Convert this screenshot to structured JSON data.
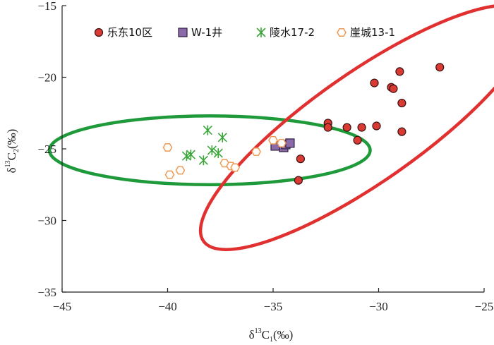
{
  "chart_data": {
    "type": "scatter",
    "xlabel_parts": {
      "base": "δ",
      "sup": "13",
      "main": "C",
      "sub": "1",
      "unit": "(‰)"
    },
    "ylabel_parts": {
      "base": "δ",
      "sup": "13",
      "main": "C",
      "sub": "2",
      "unit": "(‰)"
    },
    "xlim": [
      -45,
      -25
    ],
    "ylim": [
      -35,
      -15
    ],
    "xticks": [
      -45,
      -40,
      -35,
      -30,
      -25
    ],
    "yticks": [
      -35,
      -30,
      -25,
      -20,
      -15
    ],
    "xtick_labels": [
      "−45",
      "−40",
      "−35",
      "−30",
      "−25"
    ],
    "ytick_labels": [
      "−35",
      "−30",
      "−25",
      "−20",
      "−15"
    ],
    "grid": false,
    "legend_position": "top",
    "series": [
      {
        "name": "乐东10区",
        "marker": "filled-circle",
        "color": "#d93a34",
        "points": [
          [
            -27.1,
            -19.3
          ],
          [
            -29.0,
            -19.6
          ],
          [
            -29.4,
            -20.7
          ],
          [
            -29.3,
            -20.8
          ],
          [
            -30.2,
            -20.4
          ],
          [
            -28.9,
            -21.8
          ],
          [
            -32.4,
            -23.2
          ],
          [
            -32.4,
            -23.5
          ],
          [
            -31.5,
            -23.5
          ],
          [
            -30.8,
            -23.5
          ],
          [
            -30.1,
            -23.4
          ],
          [
            -28.9,
            -23.8
          ],
          [
            -31.0,
            -24.4
          ],
          [
            -33.7,
            -25.7
          ],
          [
            -33.8,
            -27.2
          ]
        ]
      },
      {
        "name": "W-1井",
        "marker": "filled-square",
        "color": "#8a6aa8",
        "points": [
          [
            -34.9,
            -24.8
          ],
          [
            -34.5,
            -24.9
          ],
          [
            -34.4,
            -24.7
          ],
          [
            -34.2,
            -24.6
          ]
        ]
      },
      {
        "name": "陵水17-2",
        "marker": "asterisk",
        "color": "#3aa63a",
        "points": [
          [
            -38.1,
            -23.7
          ],
          [
            -37.4,
            -24.2
          ],
          [
            -37.9,
            -25.1
          ],
          [
            -37.6,
            -25.3
          ],
          [
            -39.1,
            -25.5
          ],
          [
            -38.9,
            -25.4
          ],
          [
            -38.3,
            -25.8
          ]
        ]
      },
      {
        "name": "崖城13-1",
        "marker": "open-hexagon",
        "color": "#ec9a55",
        "points": [
          [
            -40.0,
            -24.9
          ],
          [
            -35.8,
            -25.2
          ],
          [
            -35.0,
            -24.4
          ],
          [
            -34.6,
            -24.6
          ],
          [
            -37.3,
            -26.0
          ],
          [
            -37.0,
            -26.2
          ],
          [
            -36.8,
            -26.3
          ],
          [
            -39.4,
            -26.5
          ],
          [
            -39.9,
            -26.8
          ]
        ]
      }
    ],
    "ellipses": [
      {
        "color": "#1f9a3a",
        "cx": -38.0,
        "cy": -25.1,
        "rx": 7.6,
        "ry": 2.4,
        "rotate_deg": 0
      },
      {
        "color": "#e03030",
        "cx": -30.6,
        "cy": -23.5,
        "rx": 9.4,
        "ry": 3.8,
        "rotate_deg": -35
      }
    ]
  }
}
